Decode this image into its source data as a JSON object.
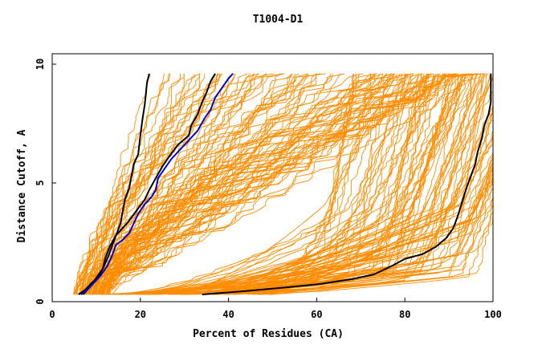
{
  "chart_data": {
    "type": "line",
    "title": "T1004-D1",
    "xlabel": "Percent of Residues (CA)",
    "ylabel": "Distance Cutoff, A",
    "xlim": [
      0,
      100
    ],
    "ylim": [
      0,
      10
    ],
    "xticks": [
      0,
      20,
      40,
      60,
      80,
      100
    ],
    "yticks": [
      0,
      5,
      10
    ],
    "grid": false,
    "colors": {
      "background_models": "#ff8c00",
      "highlight_black": "#000000",
      "highlight_blue": "#0000cc",
      "frame": "#000000"
    },
    "series": [
      {
        "name": "highlight-black-left",
        "color": "#000000",
        "points": [
          [
            7,
            0.3
          ],
          [
            8.5,
            0.6
          ],
          [
            10,
            1.0
          ],
          [
            11.5,
            1.4
          ],
          [
            12.5,
            1.8
          ],
          [
            13.5,
            2.3
          ],
          [
            14.5,
            2.8
          ],
          [
            15.5,
            3.3
          ],
          [
            16,
            3.8
          ],
          [
            16.5,
            4.3
          ],
          [
            17.5,
            4.8
          ],
          [
            18,
            5.3
          ],
          [
            18.5,
            5.8
          ],
          [
            19.5,
            6.2
          ],
          [
            20,
            7.0
          ],
          [
            20.5,
            7.7
          ],
          [
            21,
            8.3
          ],
          [
            21.5,
            9.2
          ],
          [
            22,
            9.6
          ]
        ]
      },
      {
        "name": "highlight-black-mid",
        "color": "#000000",
        "points": [
          [
            6,
            0.3
          ],
          [
            7.5,
            0.5
          ],
          [
            9,
            0.8
          ],
          [
            10.5,
            1.0
          ],
          [
            11.5,
            1.4
          ],
          [
            12,
            1.8
          ],
          [
            13,
            2.3
          ],
          [
            14.5,
            2.8
          ],
          [
            17,
            3.3
          ],
          [
            19,
            3.8
          ],
          [
            21,
            4.3
          ],
          [
            22,
            4.7
          ],
          [
            23.5,
            5.2
          ],
          [
            25,
            5.7
          ],
          [
            26.5,
            6.1
          ],
          [
            28.5,
            6.6
          ],
          [
            31,
            7.0
          ],
          [
            31.5,
            7.4
          ],
          [
            33,
            7.9
          ],
          [
            34,
            8.4
          ],
          [
            35,
            8.8
          ],
          [
            36,
            9.3
          ],
          [
            37,
            9.6
          ]
        ]
      },
      {
        "name": "highlight-blue",
        "color": "#0000cc",
        "points": [
          [
            6.5,
            0.3
          ],
          [
            8,
            0.5
          ],
          [
            9.5,
            0.8
          ],
          [
            11,
            1.1
          ],
          [
            12.5,
            1.5
          ],
          [
            13.5,
            1.9
          ],
          [
            14.5,
            2.4
          ],
          [
            16,
            2.6
          ],
          [
            17.5,
            2.9
          ],
          [
            18.5,
            3.3
          ],
          [
            19.5,
            3.7
          ],
          [
            21,
            4.1
          ],
          [
            22.5,
            4.4
          ],
          [
            23.5,
            4.7
          ],
          [
            24,
            5.2
          ],
          [
            25.5,
            5.6
          ],
          [
            27,
            6.0
          ],
          [
            29,
            6.4
          ],
          [
            31,
            6.8
          ],
          [
            33,
            7.2
          ],
          [
            34.5,
            7.7
          ],
          [
            36,
            8.1
          ],
          [
            37,
            8.6
          ],
          [
            38.5,
            9.0
          ],
          [
            40,
            9.4
          ],
          [
            41,
            9.6
          ]
        ]
      },
      {
        "name": "highlight-black-right",
        "color": "#000000",
        "points": [
          [
            34,
            0.3
          ],
          [
            44,
            0.45
          ],
          [
            53,
            0.6
          ],
          [
            61,
            0.75
          ],
          [
            68,
            0.95
          ],
          [
            73,
            1.15
          ],
          [
            77,
            1.5
          ],
          [
            80,
            1.8
          ],
          [
            84,
            2.0
          ],
          [
            87,
            2.3
          ],
          [
            89.5,
            2.7
          ],
          [
            91,
            3.1
          ],
          [
            92,
            3.6
          ],
          [
            93,
            4.2
          ],
          [
            94,
            4.8
          ],
          [
            95,
            5.3
          ],
          [
            96,
            5.8
          ],
          [
            96.5,
            6.3
          ],
          [
            97.5,
            6.9
          ],
          [
            98,
            7.4
          ],
          [
            99,
            7.9
          ],
          [
            99.5,
            8.4
          ],
          [
            99.5,
            9.0
          ],
          [
            99.5,
            9.6
          ]
        ]
      }
    ]
  }
}
